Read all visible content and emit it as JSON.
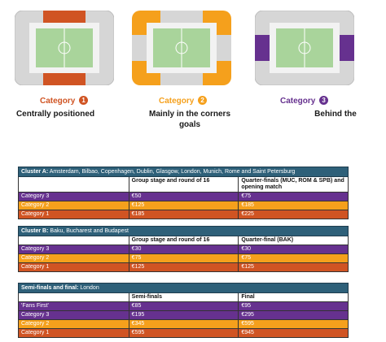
{
  "colors": {
    "cat1": "#d05423",
    "cat2": "#f5a01c",
    "cat3": "#66318f",
    "pitch": "#a9d49b",
    "stand": "#d6d6d6",
    "header": "#2e6079"
  },
  "categories": [
    {
      "label": "Category",
      "num": "1",
      "desc": [
        "Centrally positioned"
      ]
    },
    {
      "label": "Category",
      "num": "2",
      "desc": [
        "Mainly in the corners",
        "goals"
      ]
    },
    {
      "label": "Category",
      "num": "3",
      "desc": [
        "Behind the"
      ]
    }
  ],
  "tables": [
    {
      "heading_bold": "Cluster A:",
      "heading_rest": " Amsterdam, Bilbao, Copenhagen, Dublin, Glasgow, London, Munich, Rome and Saint Petersburg",
      "columns": [
        "",
        "Group stage and round of 16",
        "Quarter-finals (MUC, ROM & SPB) and opening match"
      ],
      "rows": [
        {
          "label": "Category 3",
          "a": "€50",
          "b": "€75"
        },
        {
          "label": "Category 2",
          "a": "€125",
          "b": "€185"
        },
        {
          "label": "Category 1",
          "a": "€185",
          "b": "€225"
        }
      ]
    },
    {
      "heading_bold": "Cluster B:",
      "heading_rest": " Baku, Bucharest and Budapest",
      "columns": [
        "",
        "Group stage and round of 16",
        "Quarter-final (BAK)"
      ],
      "rows": [
        {
          "label": "Category 3",
          "a": "€30",
          "b": "€30"
        },
        {
          "label": "Category 2",
          "a": "€75",
          "b": "€75"
        },
        {
          "label": "Category 1",
          "a": "€125",
          "b": "€125"
        }
      ]
    },
    {
      "heading_bold": "Semi-finals and final:",
      "heading_rest": " London",
      "columns": [
        "",
        "Semi-finals",
        "Final"
      ],
      "rows": [
        {
          "label": "'Fans First'",
          "a": "€85",
          "b": "€95"
        },
        {
          "label": "Category 3",
          "a": "€195",
          "b": "€295"
        },
        {
          "label": "Category 2",
          "a": "€345",
          "b": "€595"
        },
        {
          "label": "Category 1",
          "a": "€595",
          "b": "€945"
        }
      ]
    }
  ]
}
